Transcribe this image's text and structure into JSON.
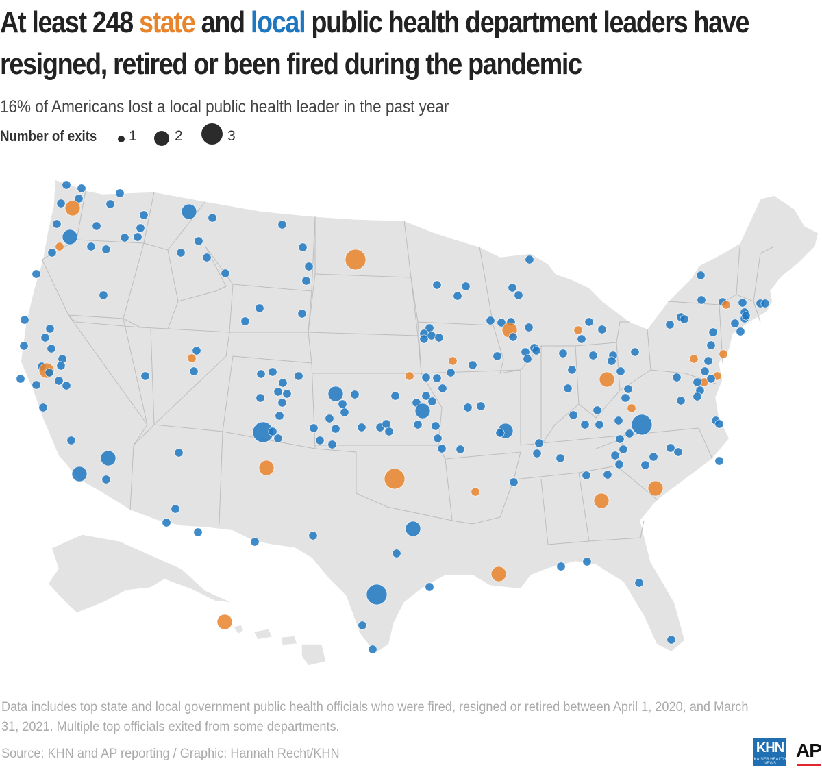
{
  "title": {
    "line1_prefix": "At least 248 ",
    "state_word": "state",
    "and_word": " and ",
    "local_word": "local",
    "line1_suffix": " public health department leaders have",
    "line2": "resigned, retired or been fired during the pandemic"
  },
  "subtitle": "16% of Americans lost a local public health leader in the past year",
  "legend": {
    "label": "Number of exits",
    "items": [
      "1",
      "2",
      "3"
    ]
  },
  "colors": {
    "state": "#e8842c",
    "local": "#1f77bf",
    "land": "#e3e3e3",
    "border": "#bdbdbd"
  },
  "note": "Data includes top state and local government public health officials who were fired, resigned or retired between April 1, 2020, and March 31, 2021. Multiple top officials exited from some departments.",
  "source": "Source: KHN and AP reporting / Graphic: Hannah Recht/KHN",
  "logos": {
    "khn": "KHN",
    "khn_sub": "KAISER HEALTH NEWS",
    "ap": "AP"
  }
}
